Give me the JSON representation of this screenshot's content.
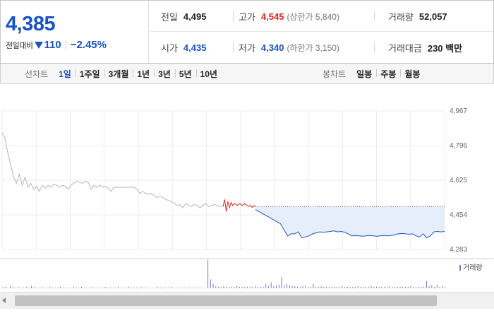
{
  "quote": {
    "current_price": "4,385",
    "change_label": "전일대비",
    "change_amount": "110",
    "change_rate": "−2.45%",
    "stats": {
      "prev_close": {
        "label": "전일",
        "value": "4,495"
      },
      "high": {
        "label": "고가",
        "value": "4,545",
        "sub": "(상한가 5,840)"
      },
      "volume": {
        "label": "거래량",
        "value": "52,057"
      },
      "open": {
        "label": "시가",
        "value": "4,435"
      },
      "low": {
        "label": "저가",
        "value": "4,340",
        "sub": "(하한가 3,150)"
      },
      "trade_value": {
        "label": "거래대금",
        "value": "230 백만"
      }
    }
  },
  "toolbar": {
    "line_chart_label": "선차트",
    "line_periods": [
      "1일",
      "1주일",
      "3개월",
      "1년",
      "3년",
      "5년",
      "10년"
    ],
    "active_period": "1일",
    "candle_chart_label": "봉차트",
    "candle_periods": [
      "일봉",
      "주봉",
      "월봉"
    ]
  },
  "colors": {
    "down": "#1a53c5",
    "up": "#e0261b",
    "prior_line": "#b5b5b5",
    "fill": "#e6eefb",
    "volume_bar": "#8a6fbf"
  },
  "chart_data": {
    "type": "line",
    "y_ticks": [
      "4,967",
      "4,796",
      "4,625",
      "4,454",
      "4,283"
    ],
    "y_tick_values": [
      4967,
      4796,
      4625,
      4454,
      4283
    ],
    "ylim": [
      4283,
      4967
    ],
    "reference_price": 4495,
    "volume_legend": "거래량",
    "series": [
      {
        "values": [
          4860,
          4830,
          4760,
          4700,
          4640,
          4610,
          4655,
          4600,
          4640,
          4590,
          4610,
          4580,
          4595,
          4570,
          4600,
          4585,
          4600,
          4590,
          4605,
          4600,
          4590,
          4600,
          4595,
          4580,
          4600,
          4610,
          4620,
          4615,
          4610,
          4620,
          4615,
          4580,
          4600,
          4590,
          4600,
          4590,
          4595,
          4585,
          4570,
          4590,
          4590,
          4590,
          4590,
          4590,
          4590,
          4590,
          4590,
          4580,
          4560,
          4570,
          4560,
          4555,
          4560,
          4550,
          4540,
          4545,
          4540,
          4530,
          4525,
          4520,
          4510,
          4500,
          4505,
          4490,
          4510,
          4500,
          4495,
          4505,
          4500,
          4490,
          4500,
          4510,
          4495,
          4500,
          4505,
          4500,
          4495,
          4500
        ]
      },
      {
        "values": [
          4495,
          4530,
          4470,
          4520,
          4490,
          4515,
          4500,
          4510,
          4505,
          4500,
          4510,
          4505,
          4500,
          4510,
          4505,
          4500,
          4495,
          4500,
          4490,
          4500,
          4495
        ]
      },
      {
        "values": [
          4480,
          4470,
          4460,
          4450,
          4440,
          4430,
          4420,
          4410,
          4380,
          4350,
          4360,
          4360,
          4370,
          4340,
          4345,
          4350,
          4360,
          4365,
          4370,
          4368,
          4370,
          4372,
          4375,
          4370,
          4372,
          4368,
          4360,
          4350,
          4352,
          4350,
          4348,
          4350,
          4352,
          4350,
          4348,
          4350,
          4352,
          4350,
          4352,
          4355,
          4360,
          4362,
          4360,
          4358,
          4360,
          4350,
          4345,
          4360,
          4340,
          4350,
          4370,
          4372,
          4370,
          4372
        ]
      }
    ],
    "volume": [
      1,
      2,
      1,
      3,
      2,
      1,
      2,
      1,
      1,
      2,
      1,
      3,
      2,
      1,
      1,
      2,
      1,
      1,
      2,
      1,
      1,
      1,
      2,
      1,
      1,
      1,
      1,
      2,
      1,
      1,
      2,
      1,
      1,
      1,
      2,
      1,
      1,
      1,
      1,
      2,
      1,
      1,
      1,
      1,
      2,
      1,
      1,
      1,
      2,
      1,
      1,
      1,
      1,
      2,
      1,
      1,
      1,
      1,
      1,
      2,
      1,
      1,
      1,
      1,
      2,
      1,
      1,
      1,
      1,
      1,
      1,
      1,
      1,
      1,
      1,
      1,
      1,
      1,
      38,
      12,
      6,
      3,
      2,
      2,
      3,
      2,
      2,
      2,
      2,
      3,
      2,
      2,
      2,
      2,
      2,
      2,
      3,
      2,
      2,
      2,
      6,
      3,
      8,
      3,
      4,
      5,
      15,
      4,
      6,
      4,
      3,
      3,
      2,
      2,
      3,
      4,
      2,
      2,
      6,
      2,
      2,
      3,
      2,
      2,
      2,
      2,
      2,
      2,
      2,
      3,
      2,
      2,
      2,
      2,
      2,
      3,
      2,
      2,
      2,
      2,
      3,
      2,
      2,
      2,
      2,
      2,
      2,
      3,
      2,
      2,
      2,
      2,
      2,
      2,
      2,
      3,
      2,
      2,
      2,
      2,
      2,
      10,
      3,
      4,
      2,
      5,
      2,
      3,
      2
    ]
  }
}
